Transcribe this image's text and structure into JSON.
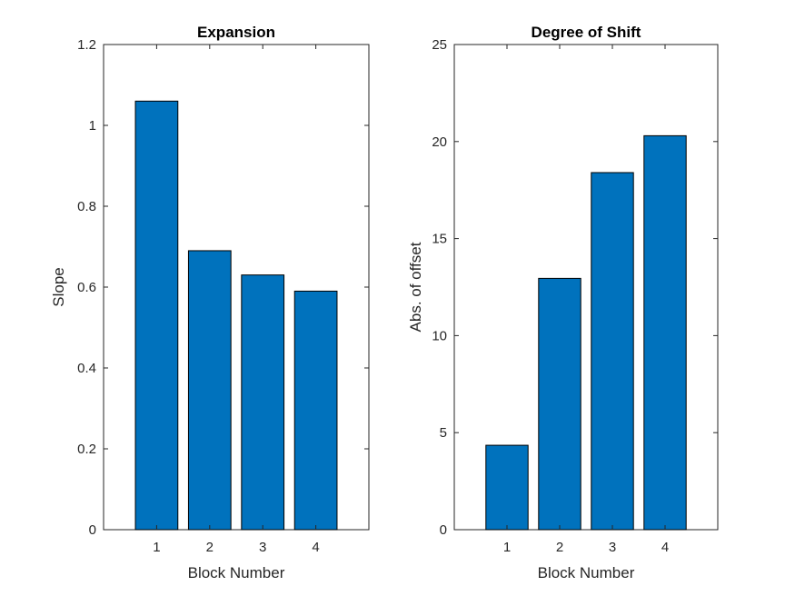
{
  "chart_data": [
    {
      "type": "bar",
      "title": "Expansion",
      "xlabel": "Block Number",
      "ylabel": "Slope",
      "categories": [
        "1",
        "2",
        "3",
        "4"
      ],
      "values": [
        1.06,
        0.69,
        0.63,
        0.59
      ],
      "xlim": [
        0,
        5
      ],
      "ylim": [
        0,
        1.2
      ],
      "yticks": [
        0,
        0.2,
        0.4,
        0.6,
        0.8,
        1,
        1.2
      ],
      "ytick_labels": [
        "0",
        "0.2",
        "0.4",
        "0.6",
        "0.8",
        "1",
        "1.2"
      ],
      "bar_color": "#0072BD",
      "grid": false
    },
    {
      "type": "bar",
      "title": "Degree of Shift",
      "xlabel": "Block Number",
      "ylabel": "Abs. of offset",
      "categories": [
        "1",
        "2",
        "3",
        "4"
      ],
      "values": [
        4.35,
        12.95,
        18.4,
        20.3
      ],
      "xlim": [
        0,
        5
      ],
      "ylim": [
        0,
        25
      ],
      "yticks": [
        0,
        5,
        10,
        15,
        20,
        25
      ],
      "ytick_labels": [
        "0",
        "5",
        "10",
        "15",
        "20",
        "25"
      ],
      "bar_color": "#0072BD",
      "grid": false
    }
  ]
}
